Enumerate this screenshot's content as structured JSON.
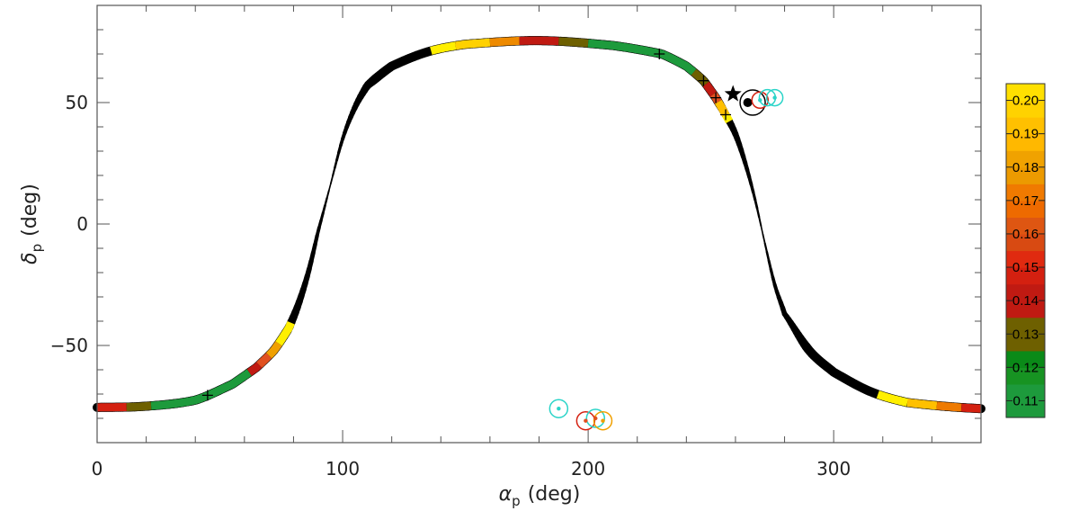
{
  "chart_data": {
    "type": "line",
    "title": "",
    "xlabel": {
      "symbol": "α",
      "sub": "p",
      "unit": "(deg)"
    },
    "ylabel": {
      "symbol": "δ",
      "sub": "p",
      "unit": "(deg)"
    },
    "xlim": [
      0,
      360
    ],
    "ylim": [
      -90,
      90
    ],
    "xticks": [
      0,
      100,
      200,
      300
    ],
    "yticks": [
      -50,
      0,
      50
    ],
    "xtick_labels": [
      "0",
      "100",
      "200",
      "300"
    ],
    "ytick_labels": [
      "−50",
      "0",
      "50"
    ],
    "curve": {
      "x": [
        0,
        20,
        40,
        55,
        65,
        72,
        78,
        82,
        86,
        90,
        95,
        100,
        105,
        110,
        120,
        135,
        150,
        180,
        210,
        230,
        240,
        247,
        252,
        256,
        260,
        264,
        268,
        272,
        276,
        280,
        290,
        300,
        315,
        330,
        360
      ],
      "y": [
        -75.5,
        -75,
        -72.5,
        -66,
        -59,
        -52,
        -43,
        -33,
        -20,
        -3,
        16,
        35,
        48,
        57,
        65,
        71,
        74,
        75.5,
        73.5,
        70,
        65,
        59,
        52,
        45,
        37,
        25,
        10,
        -8,
        -25,
        -37,
        -52,
        -61,
        -69,
        -73.5,
        -76
      ],
      "width_max": 10,
      "width_min": 1.5
    },
    "colored_segments": [
      {
        "x": [
          0,
          12
        ],
        "color": "#d42010"
      },
      {
        "x": [
          12,
          22
        ],
        "color": "#6e6000"
      },
      {
        "x": [
          22,
          62
        ],
        "color": "#1d9a3c"
      },
      {
        "x": [
          62,
          66
        ],
        "color": "#c01a12"
      },
      {
        "x": [
          66,
          70
        ],
        "color": "#e05020"
      },
      {
        "x": [
          70,
          74
        ],
        "color": "#f0a000"
      },
      {
        "x": [
          74,
          79
        ],
        "color": "#ffef00"
      },
      {
        "x": [
          136,
          146
        ],
        "color": "#ffef00"
      },
      {
        "x": [
          146,
          160
        ],
        "color": "#ffd100"
      },
      {
        "x": [
          160,
          172
        ],
        "color": "#ee8a00"
      },
      {
        "x": [
          172,
          188
        ],
        "color": "#c01a12"
      },
      {
        "x": [
          188,
          200
        ],
        "color": "#6e6000"
      },
      {
        "x": [
          200,
          243
        ],
        "color": "#1d9a3c"
      },
      {
        "x": [
          243,
          248
        ],
        "color": "#6e6000"
      },
      {
        "x": [
          248,
          251
        ],
        "color": "#c01a12"
      },
      {
        "x": [
          251,
          253
        ],
        "color": "#e05020"
      },
      {
        "x": [
          253,
          256
        ],
        "color": "#ffc000"
      },
      {
        "x": [
          256,
          257.5
        ],
        "color": "#ffef00"
      },
      {
        "x": [
          318,
          330
        ],
        "color": "#ffef00"
      },
      {
        "x": [
          330,
          342
        ],
        "color": "#ffc000"
      },
      {
        "x": [
          342,
          352
        ],
        "color": "#ee7a00"
      },
      {
        "x": [
          352,
          360
        ],
        "color": "#d42010"
      }
    ],
    "plus_markers": [
      {
        "x": 45,
        "y": -70.5
      },
      {
        "x": 229,
        "y": 70
      },
      {
        "x": 247,
        "y": 59
      },
      {
        "x": 252,
        "y": 52
      },
      {
        "x": 256,
        "y": 45
      }
    ],
    "star": {
      "x": 259,
      "y": 53.5,
      "color": "#000000"
    },
    "filled_points": [
      {
        "x": 265,
        "y": 50,
        "r": 5,
        "color": "#000000"
      }
    ],
    "circled_points": [
      {
        "x": 267,
        "y": 50,
        "r": 14,
        "color": "#000000"
      },
      {
        "x": 270,
        "y": 51,
        "r": 9,
        "color": "#d42010"
      },
      {
        "x": 273,
        "y": 52,
        "r": 9,
        "color": "#2ad4c8"
      },
      {
        "x": 276,
        "y": 52,
        "r": 9,
        "color": "#2ad4c8"
      },
      {
        "x": 188,
        "y": -76,
        "r": 10,
        "color": "#2ad4c8"
      },
      {
        "x": 199,
        "y": -81,
        "r": 10,
        "color": "#d42010"
      },
      {
        "x": 203,
        "y": -80,
        "r": 10,
        "color": "#2ad4c8"
      },
      {
        "x": 206,
        "y": -81,
        "r": 10,
        "color": "#f0a000"
      }
    ],
    "inner_dots": [
      {
        "x": 188,
        "y": -76,
        "color": "#2ad4c8"
      },
      {
        "x": 199,
        "y": -81,
        "color": "#e05020"
      },
      {
        "x": 203,
        "y": -80,
        "color": "#e05020"
      },
      {
        "x": 206,
        "y": -81,
        "color": "#f0a000"
      },
      {
        "x": 270,
        "y": 51,
        "color": "#2ad4c8"
      },
      {
        "x": 276,
        "y": 52,
        "color": "#2ad4c8"
      }
    ],
    "colorbar": {
      "min": 0.105,
      "max": 0.205,
      "ticks": [
        0.11,
        0.12,
        0.13,
        0.14,
        0.15,
        0.16,
        0.17,
        0.18,
        0.19,
        0.2
      ],
      "tick_labels": [
        "0.11",
        "0.12",
        "0.13",
        "0.14",
        "0.15",
        "0.16",
        "0.17",
        "0.18",
        "0.19",
        "0.20"
      ],
      "colors": [
        "#1d9a3c",
        "#1d9a3c",
        "#179322",
        "#0a8a18",
        "#6e6000",
        "#6e6000",
        "#c01a12",
        "#c01a12",
        "#d42010",
        "#e02a10",
        "#d84a12",
        "#de5612",
        "#ee6a00",
        "#f07a00",
        "#ec9a00",
        "#f0a200",
        "#ffb800",
        "#ffc000",
        "#ffd200",
        "#ffe000"
      ]
    }
  }
}
